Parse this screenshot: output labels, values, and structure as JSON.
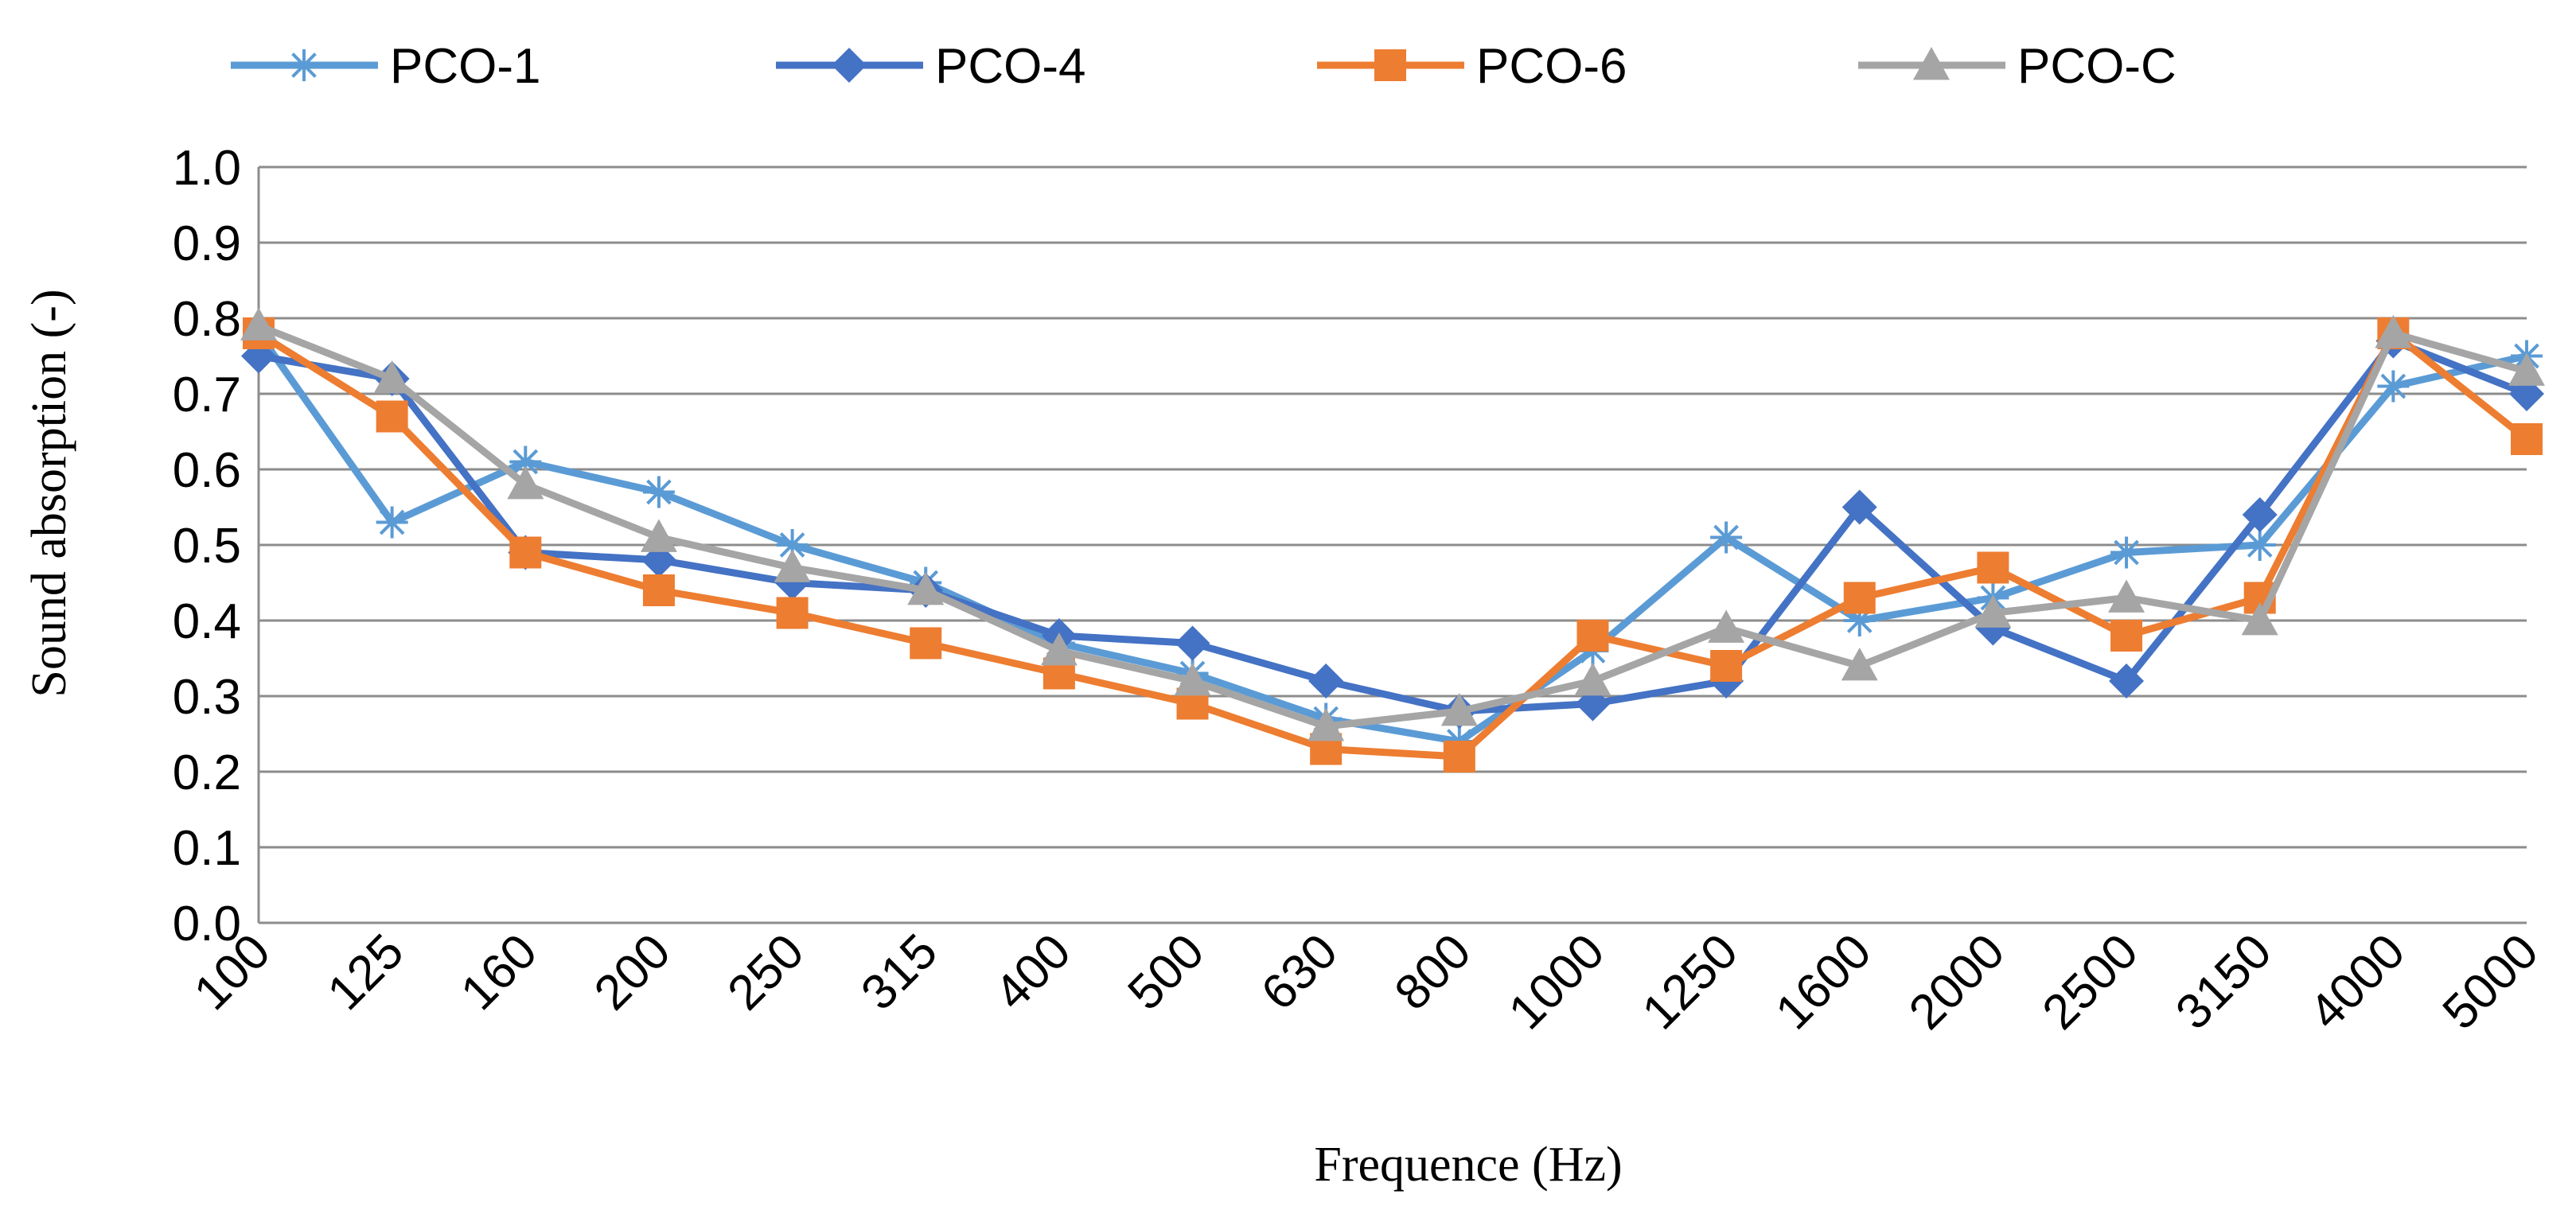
{
  "chart_data": {
    "type": "line",
    "title": "",
    "xlabel": "Frequence (Hz)",
    "ylabel": "Sound absorption (-)",
    "ylim": [
      0,
      1
    ],
    "y_ticks": [
      "0.0",
      "0.1",
      "0.2",
      "0.3",
      "0.4",
      "0.5",
      "0.6",
      "0.7",
      "0.8",
      "0.9",
      "1.0"
    ],
    "grid": "horizontal",
    "legend_position": "top",
    "categories": [
      "100",
      "125",
      "160",
      "200",
      "250",
      "315",
      "400",
      "500",
      "630",
      "800",
      "1000",
      "1250",
      "1600",
      "2000",
      "2500",
      "3150",
      "4000",
      "5000"
    ],
    "series": [
      {
        "name": "PCO-1",
        "color": "#5B9BD5",
        "marker": "asterisk",
        "values": [
          0.78,
          0.53,
          0.61,
          0.57,
          0.5,
          0.45,
          0.37,
          0.33,
          0.27,
          0.24,
          0.36,
          0.51,
          0.4,
          0.43,
          0.49,
          0.5,
          0.71,
          0.75
        ]
      },
      {
        "name": "PCO-4",
        "color": "#4472C4",
        "marker": "diamond",
        "values": [
          0.75,
          0.72,
          0.49,
          0.48,
          0.45,
          0.44,
          0.38,
          0.37,
          0.32,
          0.28,
          0.29,
          0.32,
          0.55,
          0.39,
          0.32,
          0.54,
          0.77,
          0.7
        ]
      },
      {
        "name": "PCO-6",
        "color": "#ED7D31",
        "marker": "square",
        "values": [
          0.78,
          0.67,
          0.49,
          0.44,
          0.41,
          0.37,
          0.33,
          0.29,
          0.23,
          0.22,
          0.38,
          0.34,
          0.43,
          0.47,
          0.38,
          0.43,
          0.78,
          0.64
        ]
      },
      {
        "name": "PCO-C",
        "color": "#A5A5A5",
        "marker": "triangle",
        "values": [
          0.79,
          0.72,
          0.58,
          0.51,
          0.47,
          0.44,
          0.36,
          0.32,
          0.26,
          0.28,
          0.32,
          0.39,
          0.34,
          0.41,
          0.43,
          0.4,
          0.78,
          0.73
        ]
      }
    ]
  }
}
